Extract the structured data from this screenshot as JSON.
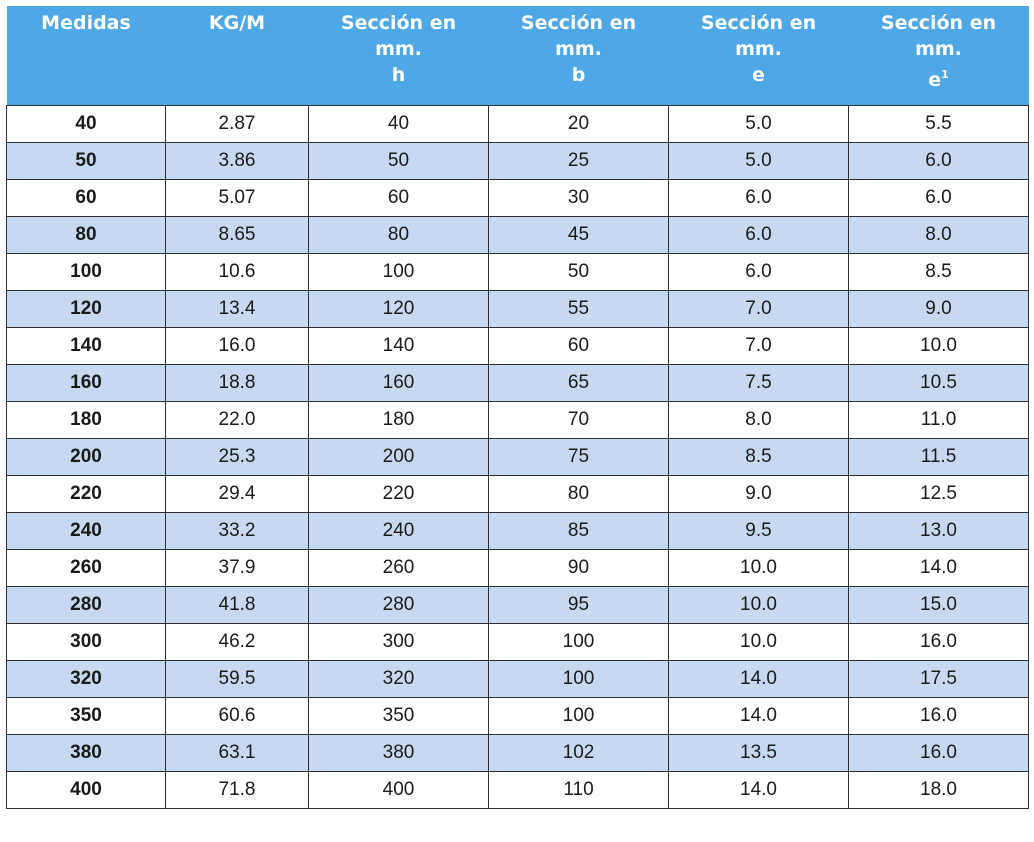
{
  "table": {
    "headers": [
      {
        "lines": [
          "Medidas"
        ]
      },
      {
        "lines": [
          "KG/M"
        ]
      },
      {
        "lines": [
          "Sección en",
          "mm.",
          "h"
        ]
      },
      {
        "lines": [
          "Sección en",
          "mm.",
          "b"
        ]
      },
      {
        "lines": [
          "Sección en",
          "mm.",
          "e"
        ]
      },
      {
        "lines": [
          "Sección en",
          "mm.",
          "e"
        ],
        "sup": "1"
      }
    ],
    "rows": [
      [
        "40",
        "2.87",
        "40",
        "20",
        "5.0",
        "5.5"
      ],
      [
        "50",
        "3.86",
        "50",
        "25",
        "5.0",
        "6.0"
      ],
      [
        "60",
        "5.07",
        "60",
        "30",
        "6.0",
        "6.0"
      ],
      [
        "80",
        "8.65",
        "80",
        "45",
        "6.0",
        "8.0"
      ],
      [
        "100",
        "10.6",
        "100",
        "50",
        "6.0",
        "8.5"
      ],
      [
        "120",
        "13.4",
        "120",
        "55",
        "7.0",
        "9.0"
      ],
      [
        "140",
        "16.0",
        "140",
        "60",
        "7.0",
        "10.0"
      ],
      [
        "160",
        "18.8",
        "160",
        "65",
        "7.5",
        "10.5"
      ],
      [
        "180",
        "22.0",
        "180",
        "70",
        "8.0",
        "11.0"
      ],
      [
        "200",
        "25.3",
        "200",
        "75",
        "8.5",
        "11.5"
      ],
      [
        "220",
        "29.4",
        "220",
        "80",
        "9.0",
        "12.5"
      ],
      [
        "240",
        "33.2",
        "240",
        "85",
        "9.5",
        "13.0"
      ],
      [
        "260",
        "37.9",
        "260",
        "90",
        "10.0",
        "14.0"
      ],
      [
        "280",
        "41.8",
        "280",
        "95",
        "10.0",
        "15.0"
      ],
      [
        "300",
        "46.2",
        "300",
        "100",
        "10.0",
        "16.0"
      ],
      [
        "320",
        "59.5",
        "320",
        "100",
        "14.0",
        "17.5"
      ],
      [
        "350",
        "60.6",
        "350",
        "100",
        "14.0",
        "16.0"
      ],
      [
        "380",
        "63.1",
        "380",
        "102",
        "13.5",
        "16.0"
      ],
      [
        "400",
        "71.8",
        "400",
        "110",
        "14.0",
        "18.0"
      ]
    ]
  },
  "colors": {
    "header_bg": "#4ea7e6",
    "header_text": "#ffffff",
    "row_alt_bg": "#c6d9f1",
    "row_bg": "#ffffff",
    "border": "#2d2d2d"
  }
}
